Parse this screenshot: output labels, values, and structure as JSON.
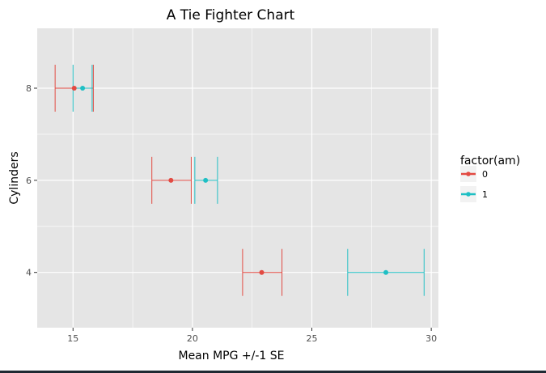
{
  "chart_data": {
    "type": "errorbar",
    "title": "A Tie Fighter Chart",
    "xlabel": "Mean MPG +/-1 SE",
    "ylabel": "Cylinders",
    "xlim": [
      13.5,
      30.3
    ],
    "ylim": [
      2.8,
      9.3
    ],
    "x_ticks": [
      15,
      20,
      25,
      30
    ],
    "x_minor_ticks": [
      17.5,
      22.5,
      27.5
    ],
    "y_ticks": [
      4,
      6,
      8
    ],
    "grid": true,
    "legend": {
      "title": "factor(am)",
      "position": "right"
    },
    "series": [
      {
        "name": "0",
        "color": "#e24a42",
        "points": [
          {
            "y": 4,
            "x": 22.9,
            "xmin": 22.1,
            "xmax": 23.75
          },
          {
            "y": 6,
            "x": 19.1,
            "xmin": 18.3,
            "xmax": 19.95
          },
          {
            "y": 8,
            "x": 15.05,
            "xmin": 14.25,
            "xmax": 15.85
          }
        ]
      },
      {
        "name": "1",
        "color": "#1fbfc4",
        "points": [
          {
            "y": 4,
            "x": 28.1,
            "xmin": 26.5,
            "xmax": 29.7
          },
          {
            "y": 6,
            "x": 20.55,
            "xmin": 20.1,
            "xmax": 21.05
          },
          {
            "y": 8,
            "x": 15.4,
            "xmin": 15.0,
            "xmax": 15.8
          }
        ]
      }
    ]
  },
  "colors": {
    "panel_background": "#e5e5e5",
    "grid_major": "#ffffff",
    "tick_label": "#4d4d4d",
    "text": "#000000"
  }
}
